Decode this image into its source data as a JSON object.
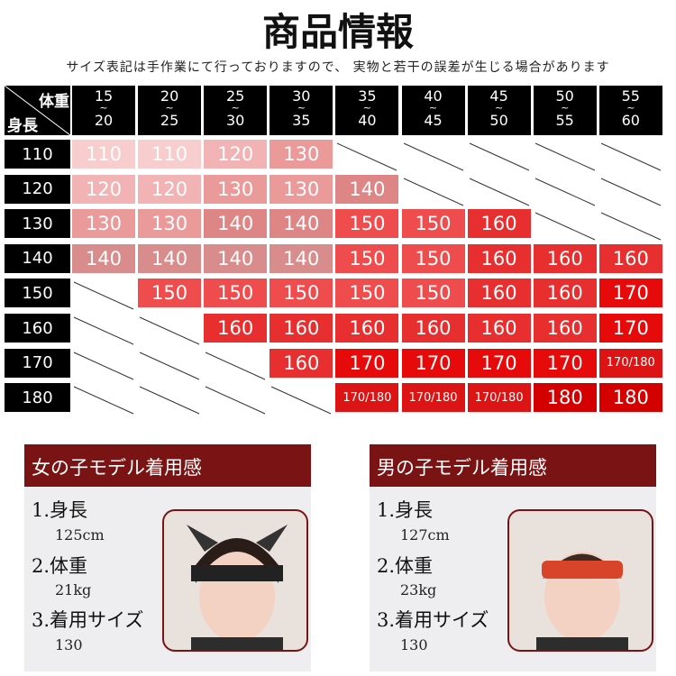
{
  "header": {
    "title": "商品情報",
    "note": "サイズ表記は手作業にて行っておりますので、 実物と若干の誤差が生じる場合があります"
  },
  "table": {
    "corner_top": "体重",
    "corner_bottom": "身長",
    "range_mark": "~",
    "columns": [
      {
        "from": "15",
        "to": "20"
      },
      {
        "from": "20",
        "to": "25"
      },
      {
        "from": "25",
        "to": "30"
      },
      {
        "from": "30",
        "to": "35"
      },
      {
        "from": "35",
        "to": "40"
      },
      {
        "from": "40",
        "to": "45"
      },
      {
        "from": "45",
        "to": "50"
      },
      {
        "from": "50",
        "to": "55"
      },
      {
        "from": "55",
        "to": "60"
      }
    ],
    "rows": [
      {
        "height": "110",
        "cells": [
          {
            "text": "110",
            "color": "#f7cdcd"
          },
          {
            "text": "110",
            "color": "#f7cdcd"
          },
          {
            "text": "120",
            "color": "#f1b3b3"
          },
          {
            "text": "130",
            "color": "#eb9a9a"
          },
          null,
          null,
          null,
          null,
          null
        ]
      },
      {
        "height": "120",
        "cells": [
          {
            "text": "120",
            "color": "#f1b3b3"
          },
          {
            "text": "120",
            "color": "#f1b3b3"
          },
          {
            "text": "130",
            "color": "#eb9a9a"
          },
          {
            "text": "130",
            "color": "#eb9a9a"
          },
          {
            "text": "140",
            "color": "#de8585"
          },
          null,
          null,
          null,
          null
        ]
      },
      {
        "height": "130",
        "cells": [
          {
            "text": "130",
            "color": "#eb9a9a"
          },
          {
            "text": "130",
            "color": "#eb9a9a"
          },
          {
            "text": "140",
            "color": "#de8585"
          },
          {
            "text": "140",
            "color": "#de8585"
          },
          {
            "text": "150",
            "color": "#ef4d4d"
          },
          {
            "text": "150",
            "color": "#ef4d4d"
          },
          {
            "text": "160",
            "color": "#e72f2f"
          },
          null,
          null
        ]
      },
      {
        "height": "140",
        "cells": [
          {
            "text": "140",
            "color": "#d98c8c"
          },
          {
            "text": "140",
            "color": "#d98c8c"
          },
          {
            "text": "140",
            "color": "#d98c8c"
          },
          {
            "text": "140",
            "color": "#d98c8c"
          },
          {
            "text": "150",
            "color": "#ef4d4d"
          },
          {
            "text": "150",
            "color": "#ef4d4d"
          },
          {
            "text": "160",
            "color": "#e72f2f"
          },
          {
            "text": "160",
            "color": "#e72f2f"
          },
          {
            "text": "160",
            "color": "#e72f2f"
          }
        ]
      },
      {
        "height": "150",
        "cells": [
          null,
          {
            "text": "150",
            "color": "#ef4d4d"
          },
          {
            "text": "150",
            "color": "#ef4d4d"
          },
          {
            "text": "150",
            "color": "#ef4d4d"
          },
          {
            "text": "150",
            "color": "#ef4d4d"
          },
          {
            "text": "150",
            "color": "#ef4d4d"
          },
          {
            "text": "160",
            "color": "#e72f2f"
          },
          {
            "text": "160",
            "color": "#e72f2f"
          },
          {
            "text": "170",
            "color": "#e60a0a"
          }
        ]
      },
      {
        "height": "160",
        "cells": [
          null,
          null,
          {
            "text": "160",
            "color": "#e72f2f"
          },
          {
            "text": "160",
            "color": "#e72f2f"
          },
          {
            "text": "160",
            "color": "#e72f2f"
          },
          {
            "text": "160",
            "color": "#e72f2f"
          },
          {
            "text": "160",
            "color": "#e72f2f"
          },
          {
            "text": "160",
            "color": "#e72f2f"
          },
          {
            "text": "170",
            "color": "#e60a0a"
          }
        ]
      },
      {
        "height": "170",
        "cells": [
          null,
          null,
          null,
          {
            "text": "160",
            "color": "#e72f2f"
          },
          {
            "text": "170",
            "color": "#e60a0a"
          },
          {
            "text": "170",
            "color": "#e60a0a"
          },
          {
            "text": "170",
            "color": "#e60a0a"
          },
          {
            "text": "170",
            "color": "#e60a0a"
          },
          {
            "text": "170/180",
            "color": "#dc1414"
          }
        ]
      },
      {
        "height": "180",
        "cells": [
          null,
          null,
          null,
          null,
          {
            "text": "170/180",
            "color": "#dc1414"
          },
          {
            "text": "170/180",
            "color": "#dc1414"
          },
          {
            "text": "170/180",
            "color": "#dc1414"
          },
          {
            "text": "180",
            "color": "#d40000"
          },
          {
            "text": "180",
            "color": "#d40000"
          }
        ]
      }
    ]
  },
  "models": [
    {
      "title": "女の子モデル着用感",
      "height_label": "1.身長",
      "height": "125cm",
      "weight_label": "2.体重",
      "weight": "21kg",
      "size_label": "3.着用サイズ",
      "size": "130"
    },
    {
      "title": "男の子モデル着用感",
      "height_label": "1.身長",
      "height": "127cm",
      "weight_label": "2.体重",
      "weight": "23kg",
      "size_label": "3.着用サイズ",
      "size": "130"
    }
  ]
}
